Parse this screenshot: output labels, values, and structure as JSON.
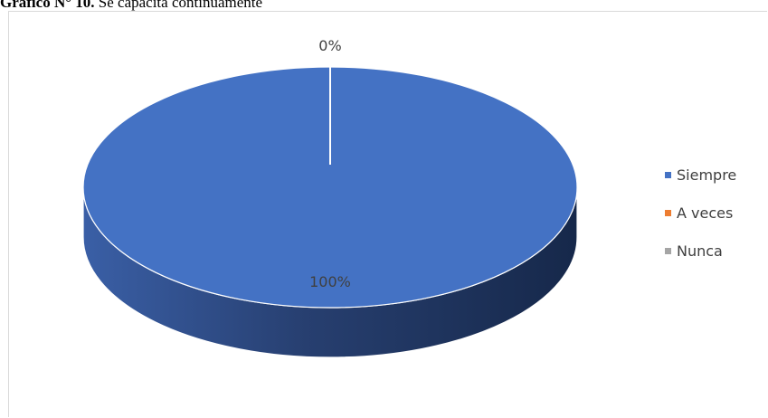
{
  "caption": {
    "prefix": "Gráfico N° 10.",
    "text": " Se capacita continuamente"
  },
  "chart_data": {
    "type": "pie",
    "title": "",
    "categories": [
      "Siempre",
      "A veces",
      "Nunca"
    ],
    "values": [
      100,
      0,
      0
    ],
    "data_labels": [
      "100%",
      "0%",
      ""
    ],
    "colors": [
      "#4472C4",
      "#ED7D31",
      "#A5A5A5"
    ],
    "legend_position": "right",
    "style": "3d"
  }
}
